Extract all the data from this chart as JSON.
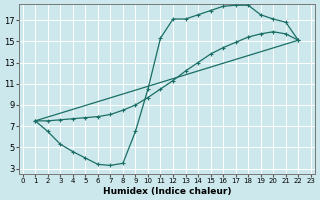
{
  "xlabel": "Humidex (Indice chaleur)",
  "bg_color": "#cce8ec",
  "grid_color": "#ffffff",
  "line_color": "#1a6e65",
  "xlim": [
    -0.3,
    23.3
  ],
  "ylim": [
    2.5,
    18.5
  ],
  "xticks": [
    0,
    1,
    2,
    3,
    4,
    5,
    6,
    7,
    8,
    9,
    10,
    11,
    12,
    13,
    14,
    15,
    16,
    17,
    18,
    19,
    20,
    21,
    22,
    23
  ],
  "yticks": [
    3,
    5,
    7,
    9,
    11,
    13,
    15,
    17
  ],
  "curve1_x": [
    1,
    2,
    3,
    4,
    5,
    6,
    7,
    8,
    9,
    10,
    11,
    12,
    13,
    14,
    15,
    16,
    17,
    18,
    19,
    20,
    21,
    22
  ],
  "curve1_y": [
    7.5,
    6.5,
    5.3,
    4.6,
    4.0,
    3.4,
    3.3,
    3.5,
    6.5,
    10.5,
    15.3,
    17.1,
    17.1,
    17.5,
    17.9,
    18.3,
    18.4,
    18.4,
    17.5,
    17.1,
    16.8,
    15.1
  ],
  "curve2_x": [
    1,
    2,
    3,
    4,
    5,
    6,
    7,
    8,
    9,
    10,
    11,
    12,
    13,
    14,
    15,
    16,
    17,
    18,
    19,
    20,
    21,
    22
  ],
  "curve2_y": [
    7.5,
    7.5,
    7.6,
    7.7,
    7.8,
    7.9,
    8.1,
    8.5,
    9.0,
    9.7,
    10.5,
    11.3,
    12.2,
    13.0,
    13.8,
    14.4,
    14.9,
    15.4,
    15.7,
    15.9,
    15.7,
    15.1
  ],
  "line3_x": [
    1,
    22
  ],
  "line3_y": [
    7.5,
    15.1
  ]
}
